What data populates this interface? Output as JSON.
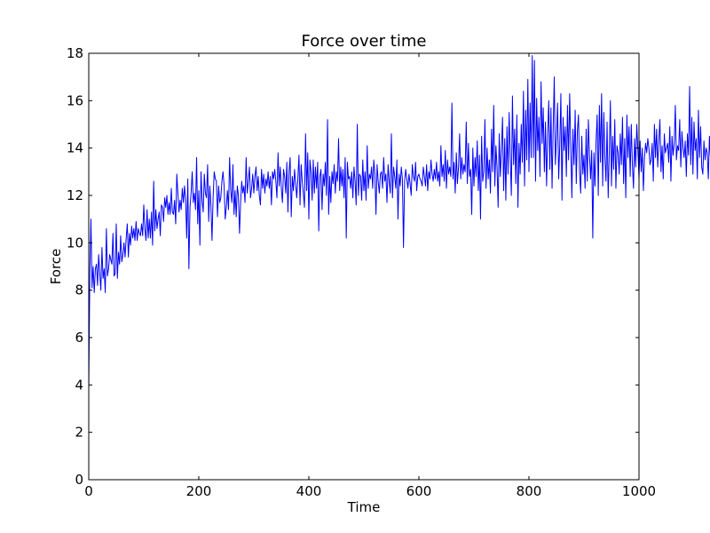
{
  "chart_data": {
    "type": "line",
    "title": "Force over time",
    "xlabel": "Time",
    "ylabel": "Force",
    "xlim": [
      0,
      1000
    ],
    "ylim": [
      0,
      18
    ],
    "x_ticks": [
      0,
      200,
      400,
      600,
      800,
      1000
    ],
    "y_ticks": [
      0,
      2,
      4,
      6,
      8,
      10,
      12,
      14,
      16,
      18
    ],
    "grid": false,
    "legend": "none",
    "x_step": 2,
    "series": [
      {
        "color": "#0000ff",
        "values": [
          3.8,
          8.8,
          11.0,
          8.1,
          9.0,
          7.9,
          8.9,
          9.1,
          8.2,
          9.5,
          8.7,
          8.0,
          9.8,
          8.5,
          8.9,
          7.9,
          10.6,
          8.6,
          8.9,
          9.5,
          9.3,
          9.1,
          10.4,
          8.6,
          8.7,
          10.8,
          8.5,
          9.6,
          9.1,
          10.3,
          9.2,
          9.5,
          10.0,
          9.4,
          10.2,
          10.8,
          9.4,
          10.4,
          9.9,
          10.7,
          10.2,
          10.6,
          10.1,
          10.9,
          10.1,
          10.6,
          10.4,
          10.3,
          10.8,
          10.3,
          11.6,
          10.6,
          10.1,
          11.4,
          10.2,
          11.0,
          10.2,
          11.3,
          9.9,
          12.6,
          10.5,
          11.4,
          10.6,
          11.0,
          11.3,
          10.3,
          11.6,
          11.5,
          10.9,
          11.9,
          11.5,
          12.0,
          11.2,
          11.7,
          11.2,
          12.3,
          11.3,
          11.2,
          11.8,
          10.8,
          12.9,
          12.1,
          11.3,
          11.8,
          11.4,
          12.3,
          11.7,
          12.4,
          11.8,
          10.2,
          12.7,
          8.9,
          11.5,
          12.1,
          13.0,
          11.7,
          12.1,
          11.4,
          13.6,
          10.8,
          12.2,
          9.9,
          13.0,
          11.8,
          11.3,
          12.9,
          12.1,
          11.9,
          13.3,
          10.9,
          12.4,
          11.6,
          10.1,
          11.9,
          13.0,
          12.7,
          12.6,
          11.1,
          12.4,
          11.7,
          11.9,
          12.6,
          13.0,
          12.4,
          11.0,
          11.5,
          12.2,
          11.4,
          13.6,
          12.2,
          11.7,
          13.3,
          11.2,
          12.2,
          11.1,
          12.4,
          12.0,
          10.4,
          11.7,
          12.6,
          12.1,
          12.4,
          11.7,
          13.6,
          12.1,
          12.6,
          13.2,
          11.9,
          12.3,
          12.9,
          12.1,
          12.8,
          13.2,
          12.2,
          12.8,
          12.0,
          11.6,
          13.1,
          12.3,
          12.9,
          12.1,
          12.7,
          12.4,
          13.0,
          12.3,
          12.8,
          11.6,
          13.0,
          12.7,
          13.1,
          12.6,
          11.9,
          13.8,
          12.4,
          13.2,
          12.3,
          11.7,
          13.1,
          12.8,
          12.1,
          13.4,
          11.3,
          13.0,
          13.6,
          11.1,
          12.8,
          12.2,
          13.1,
          12.5,
          11.9,
          12.7,
          13.7,
          11.6,
          13.3,
          12.6,
          12.1,
          11.5,
          14.6,
          12.2,
          13.8,
          11.0,
          13.5,
          13.0,
          11.8,
          13.5,
          12.1,
          13.2,
          12.3,
          13.4,
          10.5,
          12.8,
          13.1,
          11.4,
          12.9,
          12.4,
          13.4,
          12.0,
          15.2,
          11.2,
          12.8,
          11.7,
          13.0,
          12.5,
          13.3,
          12.1,
          13.0,
          12.6,
          14.4,
          12.2,
          13.2,
          12.4,
          13.1,
          11.9,
          13.6,
          10.2,
          13.4,
          12.7,
          12.8,
          12.3,
          13.0,
          11.9,
          13.2,
          12.6,
          11.6,
          15.0,
          12.0,
          12.9,
          12.8,
          11.8,
          13.5,
          12.2,
          13.0,
          11.8,
          14.1,
          12.3,
          12.9,
          12.7,
          13.2,
          12.3,
          13.5,
          12.9,
          11.2,
          13.3,
          12.6,
          12.1,
          12.9,
          13.0,
          12.3,
          13.6,
          12.6,
          12.9,
          11.7,
          13.3,
          12.6,
          12.1,
          14.6,
          11.9,
          13.2,
          12.8,
          12.3,
          13.5,
          11.0,
          12.9,
          12.4,
          13.2,
          12.7,
          9.8,
          12.6,
          13.1,
          12.7,
          12.3,
          12.9,
          12.5,
          12.0,
          13.3,
          12.8,
          12.6,
          13.4,
          12.2,
          12.8,
          12.9,
          12.7,
          12.6,
          12.4,
          13.2,
          12.8,
          12.4,
          13.3,
          12.2,
          13.0,
          12.7,
          13.5,
          12.9,
          12.6,
          13.1,
          12.7,
          13.4,
          12.6,
          13.0,
          12.4,
          14.1,
          12.8,
          13.3,
          12.6,
          13.9,
          12.3,
          13.5,
          12.9,
          13.2,
          12.8,
          15.9,
          12.7,
          13.4,
          12.1,
          13.8,
          12.5,
          13.2,
          14.6,
          12.7,
          13.6,
          12.9,
          13.3,
          13.0,
          15.1,
          12.5,
          14.2,
          12.8,
          13.1,
          11.2,
          14.0,
          12.4,
          13.6,
          12.8,
          14.3,
          12.2,
          13.7,
          11.0,
          14.5,
          12.6,
          13.0,
          15.2,
          12.3,
          14.0,
          12.7,
          13.5,
          12.1,
          14.8,
          13.0,
          15.8,
          12.4,
          14.1,
          13.2,
          11.5,
          14.6,
          12.8,
          13.9,
          15.3,
          12.2,
          14.4,
          11.8,
          14.9,
          12.9,
          15.5,
          13.6,
          12.0,
          16.2,
          13.3,
          14.8,
          12.5,
          15.4,
          11.5,
          14.2,
          12.9,
          15.0,
          13.4,
          16.4,
          12.4,
          15.6,
          13.5,
          16.9,
          13.0,
          15.9,
          13.6,
          17.9,
          13.6,
          17.7,
          12.6,
          16.1,
          13.9,
          15.3,
          12.8,
          16.8,
          14.2,
          15.7,
          13.0,
          15.1,
          12.4,
          14.6,
          16.0,
          13.1,
          15.7,
          12.3,
          14.8,
          17.0,
          13.3,
          14.4,
          15.9,
          12.7,
          14.1,
          16.3,
          11.8,
          15.3,
          13.9,
          14.9,
          12.8,
          15.8,
          13.5,
          16.3,
          14.1,
          11.9,
          14.8,
          13.3,
          15.6,
          12.5,
          14.7,
          15.4,
          13.0,
          12.1,
          14.5,
          12.9,
          13.7,
          12.3,
          14.8,
          12.6,
          15.2,
          13.7,
          12.7,
          13.9,
          10.2,
          13.8,
          12.4,
          14.3,
          15.4,
          12.0,
          15.8,
          13.4,
          16.3,
          12.4,
          15.5,
          13.6,
          12.6,
          15.1,
          11.9,
          13.8,
          16.0,
          12.4,
          14.5,
          13.1,
          15.2,
          12.3,
          14.1,
          13.8,
          12.9,
          14.6,
          13.3,
          15.3,
          12.5,
          14.4,
          11.9,
          15.4,
          13.6,
          14.9,
          12.8,
          15.0,
          13.3,
          12.3,
          14.4,
          13.2,
          15.0,
          13.9,
          12.7,
          14.3,
          13.0,
          14.0,
          12.2,
          13.6,
          14.2,
          13.8,
          14.4,
          14.0,
          13.3,
          13.5,
          14.2,
          12.6,
          15.0,
          13.6,
          14.8,
          13.2,
          14.3,
          15.2,
          13.0,
          14.1,
          12.7,
          14.6,
          13.8,
          14.0,
          14.2,
          13.4,
          14.9,
          12.6,
          14.5,
          13.7,
          14.2,
          15.8,
          13.5,
          14.1,
          13.9,
          15.2,
          13.2,
          14.7,
          14.0,
          13.6,
          14.3,
          12.8,
          14.6,
          13.7,
          16.6,
          13.3,
          15.3,
          12.9,
          15.1,
          13.9,
          14.4,
          12.7,
          15.6,
          13.6,
          14.9,
          13.2,
          12.9,
          14.3,
          13.5,
          14.0,
          13.8,
          12.7,
          14.5,
          13.5,
          14.7,
          13.9,
          12.8,
          14.2,
          15.0,
          13.4,
          14.7,
          13.6,
          13.0,
          14.5,
          13.4,
          12.9,
          14.6,
          13.8,
          13.0
        ]
      }
    ]
  }
}
